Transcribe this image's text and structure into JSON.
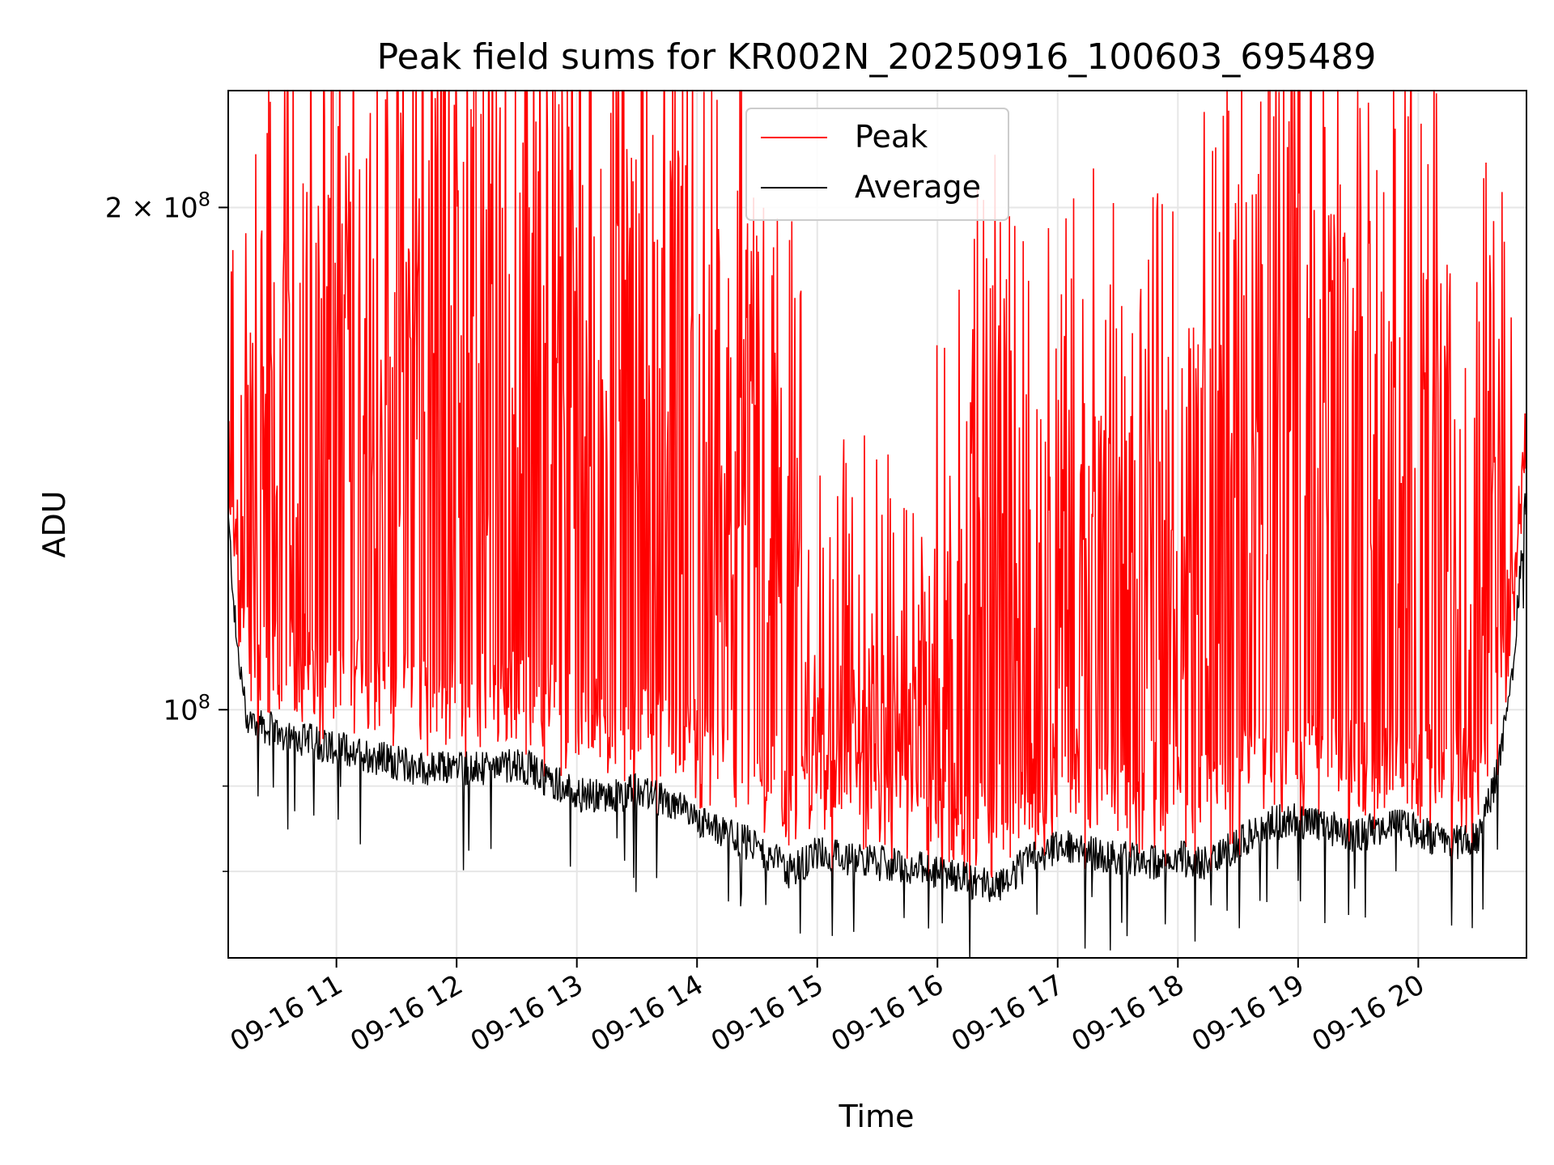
{
  "chart_data": {
    "type": "line",
    "title": "Peak field sums for KR002N_20250916_100603_695489",
    "xlabel": "Time",
    "ylabel": "ADU",
    "yscale": "log",
    "ylim": [
      71000000,
      235000000
    ],
    "xlim": [
      "2025-09-16 10:06",
      "2025-09-16 20:54"
    ],
    "x_ticks": [
      "09-16 11",
      "09-16 12",
      "09-16 13",
      "09-16 14",
      "09-16 15",
      "09-16 16",
      "09-16 17",
      "09-16 18",
      "09-16 19",
      "09-16 20"
    ],
    "y_ticks": [
      {
        "value": 100000000,
        "label_base": "10",
        "label_exp": "8"
      },
      {
        "value": 200000000,
        "label_base": "2 × 10",
        "label_exp": "8"
      }
    ],
    "y_minor_ticks": [
      80000000,
      90000000
    ],
    "grid": true,
    "legend_position": "upper center",
    "series": [
      {
        "name": "Peak",
        "color": "#ff0000",
        "points": [
          [
            "10:06",
            135000000
          ],
          [
            "10:12",
            160000000
          ],
          [
            "10:30",
            190000000
          ],
          [
            "10:45",
            215000000
          ],
          [
            "11:00",
            225000000
          ],
          [
            "11:15",
            220000000
          ],
          [
            "11:30",
            215000000
          ],
          [
            "11:45",
            228000000
          ],
          [
            "12:00",
            230000000
          ],
          [
            "12:15",
            232000000
          ],
          [
            "12:30",
            230000000
          ],
          [
            "12:45",
            228000000
          ],
          [
            "13:00",
            225000000
          ],
          [
            "13:15",
            222000000
          ],
          [
            "13:30",
            215000000
          ],
          [
            "13:45",
            210000000
          ],
          [
            "14:00",
            185000000
          ],
          [
            "14:15",
            175000000
          ],
          [
            "14:30",
            195000000
          ],
          [
            "14:45",
            165000000
          ],
          [
            "15:00",
            105000000
          ],
          [
            "15:15",
            108000000
          ],
          [
            "15:30",
            110000000
          ],
          [
            "15:45",
            102000000
          ],
          [
            "16:00",
            125000000
          ],
          [
            "16:15",
            150000000
          ],
          [
            "16:30",
            165000000
          ],
          [
            "16:45",
            150000000
          ],
          [
            "17:00",
            155000000
          ],
          [
            "17:15",
            160000000
          ],
          [
            "17:30",
            150000000
          ],
          [
            "17:45",
            155000000
          ],
          [
            "18:00",
            165000000
          ],
          [
            "18:15",
            175000000
          ],
          [
            "18:30",
            195000000
          ],
          [
            "18:45",
            220000000
          ],
          [
            "19:00",
            230000000
          ],
          [
            "19:15",
            205000000
          ],
          [
            "19:30",
            185000000
          ],
          [
            "19:45",
            175000000
          ],
          [
            "20:00",
            200000000
          ],
          [
            "20:15",
            185000000
          ],
          [
            "20:30",
            175000000
          ],
          [
            "20:45",
            150000000
          ],
          [
            "20:54",
            140000000
          ]
        ]
      },
      {
        "name": "Average",
        "color": "#000000",
        "points": [
          [
            "10:06",
            130000000
          ],
          [
            "10:10",
            110000000
          ],
          [
            "10:15",
            99000000
          ],
          [
            "10:30",
            97000000
          ],
          [
            "10:45",
            96000000
          ],
          [
            "11:00",
            95000000
          ],
          [
            "11:15",
            94000000
          ],
          [
            "11:30",
            93000000
          ],
          [
            "11:45",
            92000000
          ],
          [
            "12:00",
            92500000
          ],
          [
            "12:15",
            92000000
          ],
          [
            "12:30",
            93000000
          ],
          [
            "12:45",
            91000000
          ],
          [
            "13:00",
            89000000
          ],
          [
            "13:15",
            88500000
          ],
          [
            "13:30",
            89500000
          ],
          [
            "13:45",
            88000000
          ],
          [
            "14:00",
            86000000
          ],
          [
            "14:15",
            84000000
          ],
          [
            "14:30",
            83000000
          ],
          [
            "14:45",
            80000000
          ],
          [
            "15:00",
            82000000
          ],
          [
            "15:15",
            81500000
          ],
          [
            "15:30",
            81000000
          ],
          [
            "15:45",
            80500000
          ],
          [
            "16:00",
            80000000
          ],
          [
            "16:15",
            79000000
          ],
          [
            "16:30",
            78500000
          ],
          [
            "16:45",
            81000000
          ],
          [
            "17:00",
            83000000
          ],
          [
            "17:15",
            82000000
          ],
          [
            "17:30",
            81500000
          ],
          [
            "17:45",
            81000000
          ],
          [
            "18:00",
            81500000
          ],
          [
            "18:15",
            81000000
          ],
          [
            "18:30",
            83000000
          ],
          [
            "18:45",
            85500000
          ],
          [
            "19:00",
            86000000
          ],
          [
            "19:15",
            85000000
          ],
          [
            "19:30",
            84000000
          ],
          [
            "19:45",
            85500000
          ],
          [
            "20:00",
            84500000
          ],
          [
            "20:15",
            83000000
          ],
          [
            "20:30",
            84000000
          ],
          [
            "20:40",
            92000000
          ],
          [
            "20:48",
            108000000
          ],
          [
            "20:54",
            135000000
          ]
        ]
      }
    ]
  }
}
